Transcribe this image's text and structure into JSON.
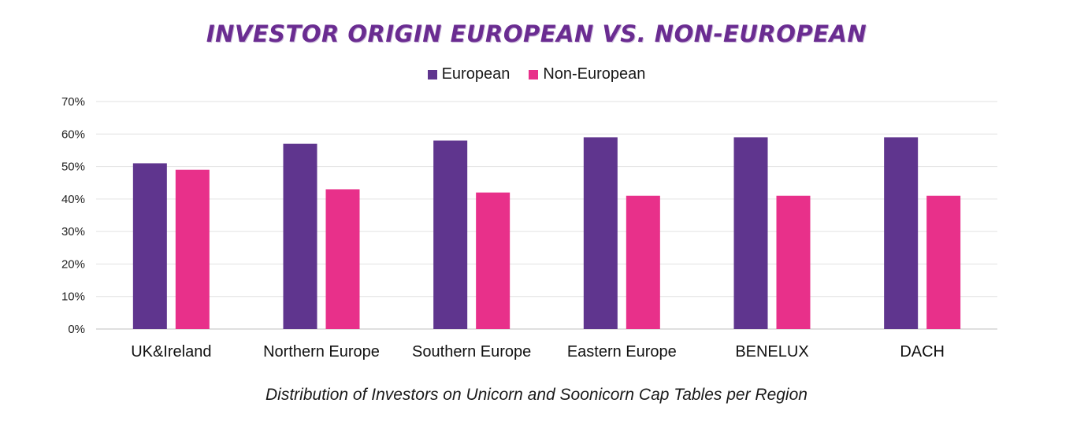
{
  "chart_data": {
    "type": "bar",
    "title": "INVESTOR ORIGIN EUROPEAN VS. NON-EUROPEAN",
    "caption": "Distribution of Investors on Unicorn and Soonicorn Cap Tables per Region",
    "categories": [
      "UK&Ireland",
      "Northern Europe",
      "Southern Europe",
      "Eastern Europe",
      "BENELUX",
      "DACH"
    ],
    "series": [
      {
        "name": "European",
        "color": "#5f358e",
        "values": [
          51,
          57,
          58,
          59,
          59,
          59
        ]
      },
      {
        "name": "Non-European",
        "color": "#e8308a",
        "values": [
          49,
          43,
          42,
          41,
          41,
          41
        ]
      }
    ],
    "ylim": [
      0,
      70
    ],
    "yticks": [
      "0%",
      "10%",
      "20%",
      "30%",
      "40%",
      "50%",
      "60%",
      "70%"
    ],
    "grid": true,
    "legend_position": "top-center"
  }
}
